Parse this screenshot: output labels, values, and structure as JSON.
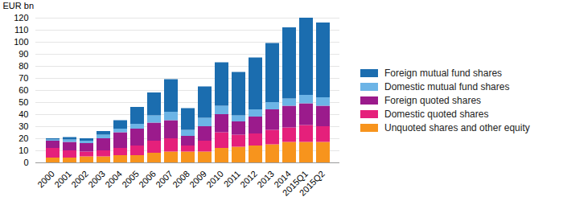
{
  "chart_data": {
    "type": "bar",
    "stacked": true,
    "grid": true,
    "legend": "right",
    "y_label": "EUR bn",
    "categories": [
      "2000",
      "2001",
      "2002",
      "2003",
      "2004",
      "2005",
      "2006",
      "2007",
      "2008",
      "2009",
      "2010",
      "2011",
      "2012",
      "2013",
      "2014",
      "2015Q1",
      "2015Q2"
    ],
    "ylim": [
      0,
      120
    ],
    "yticks": [
      0,
      10,
      20,
      30,
      40,
      50,
      60,
      70,
      80,
      90,
      100,
      110,
      120
    ],
    "series": [
      {
        "name": "Unquoted shares and other equity",
        "color": "#f7941d",
        "values": [
          4,
          4,
          5,
          5,
          6,
          6,
          8,
          9,
          9,
          9,
          12,
          13,
          14,
          15,
          17,
          17,
          17
        ]
      },
      {
        "name": "Domestic quoted shares",
        "color": "#e5207b",
        "values": [
          8,
          6,
          4,
          5,
          6,
          8,
          10,
          11,
          5,
          9,
          13,
          10,
          10,
          12,
          12,
          14,
          13
        ]
      },
      {
        "name": "Foreign quoted shares",
        "color": "#9b1b8c",
        "values": [
          6,
          7,
          7,
          10,
          13,
          14,
          15,
          15,
          8,
          12,
          15,
          11,
          14,
          17,
          18,
          18,
          17
        ]
      },
      {
        "name": "Domestic mutual fund shares",
        "color": "#6cb4e6",
        "values": [
          1,
          2,
          2,
          3,
          3,
          4,
          6,
          7,
          5,
          7,
          7,
          5,
          6,
          6,
          6,
          7,
          7
        ]
      },
      {
        "name": "Foreign mutual fund shares",
        "color": "#1b6daf",
        "values": [
          1,
          2,
          2,
          3,
          7,
          14,
          19,
          27,
          18,
          26,
          36,
          36,
          43,
          49,
          59,
          64,
          62
        ]
      }
    ]
  }
}
